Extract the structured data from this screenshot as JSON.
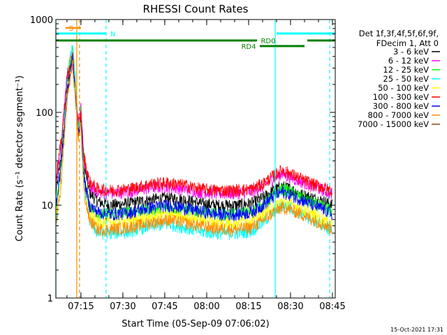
{
  "chart_data": {
    "type": "line",
    "title": "RHESSI Count Rates",
    "xlabel": "Start Time (05-Sep-09 07:06:02)",
    "ylabel": "Count Rate (s⁻¹ detector segment⁻¹)",
    "yscale": "log",
    "ylim": [
      1,
      1000
    ],
    "xlim": [
      "07:06:02",
      "08:46:00"
    ],
    "x_ticks": [
      "07:15",
      "07:30",
      "07:45",
      "08:00",
      "08:15",
      "08:30",
      "08:45"
    ],
    "y_ticks": [
      "1",
      "10",
      "100",
      "1000"
    ],
    "grid": false,
    "legend": {
      "position": "right",
      "header": [
        "Det 1f,3f,4f,5f,6f,9f,",
        "FDecim 1, Att 0"
      ]
    },
    "series": [
      {
        "name": "3 - 6 keV",
        "color": "#000000",
        "x": [
          "07:06",
          "07:08",
          "07:10",
          "07:12",
          "07:13",
          "07:14",
          "07:15",
          "07:16",
          "07:18",
          "07:21",
          "07:25",
          "07:32",
          "07:40",
          "07:46",
          "07:52",
          "07:58",
          "08:04",
          "08:10",
          "08:16",
          "08:20",
          "08:24",
          "08:27",
          "08:30",
          "08:34",
          "08:38",
          "08:42",
          "08:45"
        ],
        "y": [
          13,
          35,
          180,
          420,
          170,
          70,
          95,
          28,
          14,
          11,
          10,
          10.5,
          11.5,
          12,
          11.5,
          10.5,
          10,
          10,
          10.5,
          12,
          14.5,
          16,
          15,
          13,
          12,
          11,
          10
        ]
      },
      {
        "name": "6 - 12 keV",
        "color": "#ff00ff",
        "x": [
          "07:06",
          "07:08",
          "07:10",
          "07:12",
          "07:13",
          "07:14",
          "07:15",
          "07:16",
          "07:18",
          "07:21",
          "07:25",
          "07:32",
          "07:40",
          "07:46",
          "07:52",
          "07:58",
          "08:04",
          "08:10",
          "08:16",
          "08:20",
          "08:24",
          "08:27",
          "08:30",
          "08:34",
          "08:38",
          "08:42",
          "08:45"
        ],
        "y": [
          17,
          45,
          250,
          480,
          200,
          80,
          110,
          32,
          16,
          14,
          13.5,
          14,
          15.5,
          16,
          15,
          14,
          13.5,
          13.5,
          14,
          16,
          19.5,
          22,
          20,
          18,
          16,
          14.5,
          13
        ]
      },
      {
        "name": "12 - 25 keV",
        "color": "#00ff00",
        "x": [
          "07:06",
          "07:08",
          "07:10",
          "07:12",
          "07:13",
          "07:14",
          "07:15",
          "07:16",
          "07:18",
          "07:21",
          "07:25",
          "07:32",
          "07:40",
          "07:46",
          "07:52",
          "07:58",
          "08:04",
          "08:10",
          "08:16",
          "08:20",
          "08:24",
          "08:27",
          "08:30",
          "08:34",
          "08:38",
          "08:42",
          "08:45"
        ],
        "y": [
          9,
          30,
          220,
          520,
          210,
          70,
          105,
          22,
          10,
          8,
          8,
          8.5,
          9,
          9.5,
          9,
          8.5,
          8,
          8,
          8.5,
          10,
          13,
          15,
          14,
          12,
          10.5,
          9.5,
          8.5
        ]
      },
      {
        "name": "25 - 50 keV",
        "color": "#00ffff",
        "x": [
          "07:06",
          "07:08",
          "07:10",
          "07:12",
          "07:13",
          "07:14",
          "07:15",
          "07:16",
          "07:18",
          "07:21",
          "07:25",
          "07:32",
          "07:40",
          "07:46",
          "07:52",
          "07:58",
          "08:04",
          "08:10",
          "08:16",
          "08:20",
          "08:24",
          "08:27",
          "08:30",
          "08:34",
          "08:38",
          "08:42",
          "08:45"
        ],
        "y": [
          6,
          25,
          200,
          550,
          220,
          70,
          100,
          18,
          7,
          5,
          5,
          5.2,
          6,
          6.3,
          5.8,
          5.2,
          5,
          5,
          5.3,
          6.5,
          8.5,
          10,
          9.5,
          8,
          7,
          6,
          5.2
        ]
      },
      {
        "name": "50 - 100 keV",
        "color": "#ffff00",
        "x": [
          "07:06",
          "07:08",
          "07:10",
          "07:12",
          "07:13",
          "07:14",
          "07:15",
          "07:16",
          "07:18",
          "07:21",
          "07:25",
          "07:32",
          "07:40",
          "07:46",
          "07:52",
          "07:58",
          "08:04",
          "08:10",
          "08:16",
          "08:20",
          "08:24",
          "08:27",
          "08:30",
          "08:34",
          "08:38",
          "08:42",
          "08:45"
        ],
        "y": [
          7,
          22,
          150,
          380,
          160,
          55,
          80,
          16,
          8,
          6.5,
          6.5,
          6.8,
          7.5,
          8,
          7.5,
          7,
          6.5,
          6.5,
          7,
          8,
          10,
          11,
          10.5,
          9,
          8,
          7,
          6.5
        ]
      },
      {
        "name": "100 - 300 keV",
        "color": "#ff0000",
        "x": [
          "07:06",
          "07:08",
          "07:10",
          "07:12",
          "07:13",
          "07:14",
          "07:15",
          "07:16",
          "07:18",
          "07:21",
          "07:25",
          "07:32",
          "07:40",
          "07:46",
          "07:52",
          "07:58",
          "08:04",
          "08:10",
          "08:16",
          "08:20",
          "08:24",
          "08:27",
          "08:30",
          "08:34",
          "08:38",
          "08:42",
          "08:45"
        ],
        "y": [
          20,
          50,
          230,
          400,
          170,
          75,
          95,
          35,
          18,
          15,
          14.5,
          15,
          17,
          17.5,
          16.5,
          15,
          14.5,
          14.5,
          15,
          17,
          21,
          24,
          22,
          19,
          17,
          15.5,
          14
        ]
      },
      {
        "name": "300 - 800 keV",
        "color": "#0000ff",
        "x": [
          "07:06",
          "07:08",
          "07:10",
          "07:12",
          "07:13",
          "07:14",
          "07:15",
          "07:16",
          "07:18",
          "07:21",
          "07:25",
          "07:32",
          "07:40",
          "07:46",
          "07:52",
          "07:58",
          "08:04",
          "08:10",
          "08:16",
          "08:20",
          "08:24",
          "08:27",
          "08:30",
          "08:34",
          "08:38",
          "08:42",
          "08:45"
        ],
        "y": [
          10,
          28,
          160,
          360,
          150,
          58,
          85,
          20,
          10,
          8.5,
          8,
          8.3,
          9.5,
          10,
          9.3,
          8.6,
          8,
          8,
          8.4,
          10,
          12.5,
          14,
          13,
          11.5,
          10,
          9,
          8
        ]
      },
      {
        "name": "800 - 7000 keV",
        "color": "#ff8c00",
        "x": [
          "07:06",
          "07:08",
          "07:10",
          "07:12",
          "07:13",
          "07:14",
          "07:15",
          "07:16",
          "07:18",
          "07:21",
          "07:25",
          "07:32",
          "07:40",
          "07:46",
          "07:52",
          "07:58",
          "08:04",
          "08:10",
          "08:16",
          "08:20",
          "08:24",
          "08:27",
          "08:30",
          "08:34",
          "08:38",
          "08:42",
          "08:45"
        ],
        "y": [
          5.5,
          18,
          130,
          330,
          140,
          50,
          75,
          14,
          7,
          5.5,
          5.5,
          5.8,
          6.5,
          7,
          6.5,
          6,
          5.6,
          5.5,
          5.8,
          6.8,
          8.5,
          9.5,
          9,
          8,
          7,
          6.2,
          5.5
        ]
      },
      {
        "name": "7000 - 15000 keV",
        "color": "#8b4513",
        "x": [],
        "y": []
      }
    ],
    "annotations": {
      "attenuator_S": {
        "label": "S",
        "color": "#ff8c00",
        "x": [
          "07:09:30",
          "07:15:00"
        ]
      },
      "night_N": {
        "label": "N",
        "color": "#00ffff",
        "segments": [
          [
            "07:06:02",
            "07:24:00"
          ],
          [
            "08:25:00",
            "08:46:00"
          ]
        ]
      },
      "decimation_RD0": {
        "label": "RD0",
        "color": "#008000",
        "segments": [
          [
            "07:06:02",
            "08:18:00"
          ],
          [
            "08:36:00",
            "08:46:00"
          ]
        ]
      },
      "decimation_RD4": {
        "label": "RD4",
        "color": "#008000",
        "segments": [
          [
            "08:19:00",
            "08:35:00"
          ]
        ]
      },
      "vlines": [
        {
          "x": "07:06:02",
          "color": "#00ffff",
          "style": "solid"
        },
        {
          "x": "07:13:30",
          "color": "#ff8c00",
          "style": "solid"
        },
        {
          "x": "07:14:30",
          "color": "#ff8c00",
          "style": "dashed"
        },
        {
          "x": "07:24:00",
          "color": "#00ffff",
          "style": "dashed"
        },
        {
          "x": "08:24:30",
          "color": "#00ffff",
          "style": "solid"
        },
        {
          "x": "08:44:00",
          "color": "#00ffff",
          "style": "dashed"
        }
      ]
    },
    "timestamp": "15-Oct-2021 17:31"
  }
}
